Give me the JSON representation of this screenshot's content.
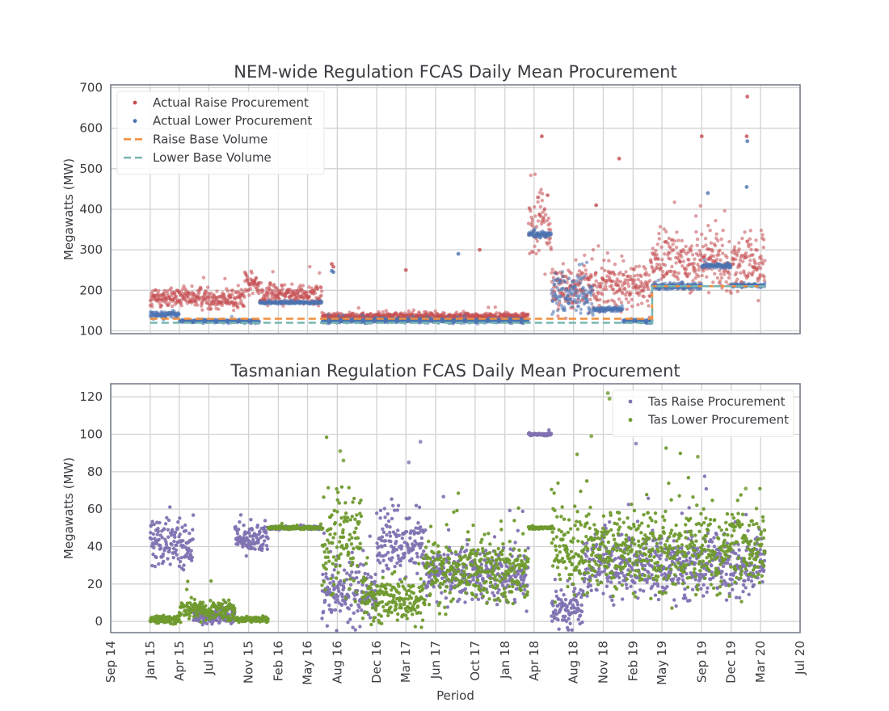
{
  "chart_data": [
    {
      "type": "scatter",
      "title": "NEM-wide Regulation FCAS Daily Mean Procurement",
      "xlabel": "",
      "ylabel": "Megawatts (MW)",
      "xlim": [
        "2014-09-01",
        "2020-07-01"
      ],
      "ylim": [
        93,
        707
      ],
      "yticks": [
        100,
        200,
        300,
        400,
        500,
        600,
        700
      ],
      "grid": true,
      "legend": "top-left",
      "series": [
        {
          "name": "Actual Raise Procurement",
          "kind": "points",
          "color": "#c44e52",
          "segments": [
            {
              "from": "2015-01-01",
              "to": "2015-10-20",
              "mean": 180,
              "jitter": 18
            },
            {
              "from": "2015-10-20",
              "to": "2015-12-05",
              "mean": 215,
              "jitter": 20
            },
            {
              "from": "2015-12-05",
              "to": "2016-06-15",
              "mean": 190,
              "jitter": 18
            },
            {
              "from": "2016-06-15",
              "to": "2018-03-15",
              "mean": 135,
              "jitter": 7
            },
            {
              "from": "2018-03-15",
              "to": "2018-05-25",
              "mean": 360,
              "jitter": 60
            },
            {
              "from": "2018-05-25",
              "to": "2019-04-01",
              "mean": 210,
              "jitter": 40
            },
            {
              "from": "2019-04-01",
              "to": "2020-03-15",
              "mean": 270,
              "jitter": 50
            }
          ],
          "outliers": [
            [
              "2016-07-15",
              265
            ],
            [
              "2016-07-20",
              258
            ],
            [
              "2017-03-01",
              250
            ],
            [
              "2017-10-15",
              300
            ],
            [
              "2018-04-25",
              580
            ],
            [
              "2018-10-10",
              410
            ],
            [
              "2018-12-20",
              525
            ],
            [
              "2019-09-01",
              580
            ],
            [
              "2020-01-20",
              678
            ],
            [
              "2020-01-18",
              580
            ]
          ]
        },
        {
          "name": "Actual Lower Procurement",
          "kind": "points",
          "color": "#4c72b0",
          "segments": [
            {
              "from": "2015-01-01",
              "to": "2015-04-01",
              "mean": 140,
              "jitter": 6
            },
            {
              "from": "2015-04-01",
              "to": "2015-12-05",
              "mean": 124,
              "jitter": 3
            },
            {
              "from": "2015-12-05",
              "to": "2016-06-15",
              "mean": 170,
              "jitter": 2
            },
            {
              "from": "2016-06-15",
              "to": "2018-03-15",
              "mean": 125,
              "jitter": 4
            },
            {
              "from": "2018-03-15",
              "to": "2018-05-25",
              "mean": 338,
              "jitter": 5
            },
            {
              "from": "2018-05-25",
              "to": "2018-10-01",
              "mean": 190,
              "jitter": 40
            },
            {
              "from": "2018-10-01",
              "to": "2019-01-01",
              "mean": 153,
              "jitter": 4
            },
            {
              "from": "2019-01-01",
              "to": "2019-04-01",
              "mean": 124,
              "jitter": 3
            },
            {
              "from": "2019-04-01",
              "to": "2019-09-01",
              "mean": 210,
              "jitter": 6
            },
            {
              "from": "2019-09-01",
              "to": "2019-12-01",
              "mean": 260,
              "jitter": 4
            },
            {
              "from": "2019-12-01",
              "to": "2020-03-15",
              "mean": 212,
              "jitter": 3
            }
          ],
          "outliers": [
            [
              "2016-07-15",
              248
            ],
            [
              "2016-07-20",
              245
            ],
            [
              "2017-08-10",
              290
            ],
            [
              "2018-04-20",
              330
            ],
            [
              "2019-09-20",
              440
            ],
            [
              "2020-01-20",
              568
            ],
            [
              "2020-01-18",
              455
            ]
          ]
        },
        {
          "name": "Raise Base Volume",
          "kind": "step-dashed",
          "color": "#f28e3c",
          "steps": [
            [
              "2015-01-01",
              130
            ],
            [
              "2019-04-01",
              210
            ],
            [
              "2020-03-15",
              210
            ]
          ]
        },
        {
          "name": "Lower Base Volume",
          "kind": "step-dashed",
          "color": "#76b7b2",
          "steps": [
            [
              "2015-01-01",
              120
            ],
            [
              "2019-04-01",
              210
            ],
            [
              "2020-03-15",
              210
            ]
          ]
        }
      ]
    },
    {
      "type": "scatter",
      "title": "Tasmanian Regulation FCAS Daily Mean Procurement",
      "xlabel": "Period",
      "ylabel": "Megawatts (MW)",
      "xlim": [
        "2014-09-01",
        "2020-07-01"
      ],
      "ylim": [
        -6,
        127
      ],
      "yticks": [
        0,
        20,
        40,
        60,
        80,
        100,
        120
      ],
      "xticks": [
        {
          "date": "2014-09-01",
          "label": "Sep 14"
        },
        {
          "date": "2015-01-01",
          "label": "Jan 15"
        },
        {
          "date": "2015-04-01",
          "label": "Apr 15"
        },
        {
          "date": "2015-07-01",
          "label": "Jul 15"
        },
        {
          "date": "2015-11-01",
          "label": "Nov 15"
        },
        {
          "date": "2016-02-01",
          "label": "Feb 16"
        },
        {
          "date": "2016-05-01",
          "label": "May 16"
        },
        {
          "date": "2016-08-01",
          "label": "Aug 16"
        },
        {
          "date": "2016-12-01",
          "label": "Dec 16"
        },
        {
          "date": "2017-03-01",
          "label": "Mar 17"
        },
        {
          "date": "2017-06-01",
          "label": "Jun 17"
        },
        {
          "date": "2017-10-01",
          "label": "Oct 17"
        },
        {
          "date": "2018-01-01",
          "label": "Jan 18"
        },
        {
          "date": "2018-04-01",
          "label": "Apr 18"
        },
        {
          "date": "2018-08-01",
          "label": "Aug 18"
        },
        {
          "date": "2018-11-01",
          "label": "Nov 18"
        },
        {
          "date": "2019-02-01",
          "label": "Feb 19"
        },
        {
          "date": "2019-05-01",
          "label": "May 19"
        },
        {
          "date": "2019-09-01",
          "label": "Sep 19"
        },
        {
          "date": "2019-12-01",
          "label": "Dec 19"
        },
        {
          "date": "2020-03-01",
          "label": "Mar 20"
        },
        {
          "date": "2020-07-01",
          "label": "Jul 20"
        }
      ],
      "grid": true,
      "legend": "top-right",
      "series": [
        {
          "name": "Tas Raise Procurement",
          "kind": "points",
          "color": "#8172b2",
          "segments": [
            {
              "from": "2015-01-01",
              "to": "2015-05-15",
              "mean": 40,
              "jitter": 10
            },
            {
              "from": "2015-05-15",
              "to": "2015-09-20",
              "mean": 3,
              "jitter": 3
            },
            {
              "from": "2015-09-20",
              "to": "2016-01-01",
              "mean": 45,
              "jitter": 6
            },
            {
              "from": "2016-01-01",
              "to": "2016-06-15",
              "mean": 50,
              "jitter": 0.5
            },
            {
              "from": "2016-06-15",
              "to": "2016-12-01",
              "mean": 15,
              "jitter": 12
            },
            {
              "from": "2016-12-01",
              "to": "2017-05-01",
              "mean": 42,
              "jitter": 12
            },
            {
              "from": "2017-05-01",
              "to": "2018-03-15",
              "mean": 25,
              "jitter": 10
            },
            {
              "from": "2018-03-15",
              "to": "2018-05-25",
              "mean": 100,
              "jitter": 0.5
            },
            {
              "from": "2018-05-25",
              "to": "2018-09-01",
              "mean": 8,
              "jitter": 8
            },
            {
              "from": "2018-09-01",
              "to": "2020-03-15",
              "mean": 30,
              "jitter": 12
            }
          ],
          "outliers": [
            [
              "2017-04-15",
              96
            ],
            [
              "2017-03-10",
              85
            ],
            [
              "2019-02-10",
              95
            ]
          ]
        },
        {
          "name": "Tas Lower Procurement",
          "kind": "points",
          "color": "#6f9a2e",
          "segments": [
            {
              "from": "2015-01-01",
              "to": "2015-04-01",
              "mean": 1,
              "jitter": 1.5
            },
            {
              "from": "2015-04-01",
              "to": "2015-09-20",
              "mean": 6,
              "jitter": 4
            },
            {
              "from": "2015-09-20",
              "to": "2016-01-01",
              "mean": 1,
              "jitter": 1
            },
            {
              "from": "2016-01-01",
              "to": "2016-06-15",
              "mean": 50,
              "jitter": 0.5
            },
            {
              "from": "2016-06-15",
              "to": "2016-10-15",
              "mean": 40,
              "jitter": 20
            },
            {
              "from": "2016-10-15",
              "to": "2017-05-01",
              "mean": 12,
              "jitter": 9
            },
            {
              "from": "2017-05-01",
              "to": "2018-03-15",
              "mean": 28,
              "jitter": 13
            },
            {
              "from": "2018-03-15",
              "to": "2018-05-25",
              "mean": 50,
              "jitter": 0.5
            },
            {
              "from": "2018-05-25",
              "to": "2020-03-15",
              "mean": 38,
              "jitter": 15
            }
          ],
          "outliers": [
            [
              "2016-08-10",
              91
            ],
            [
              "2016-08-20",
              86
            ],
            [
              "2018-09-25",
              99
            ],
            [
              "2018-11-15",
              122
            ],
            [
              "2018-11-20",
              119
            ],
            [
              "2019-08-20",
              88
            ],
            [
              "2020-01-15",
              71
            ]
          ]
        }
      ]
    }
  ]
}
